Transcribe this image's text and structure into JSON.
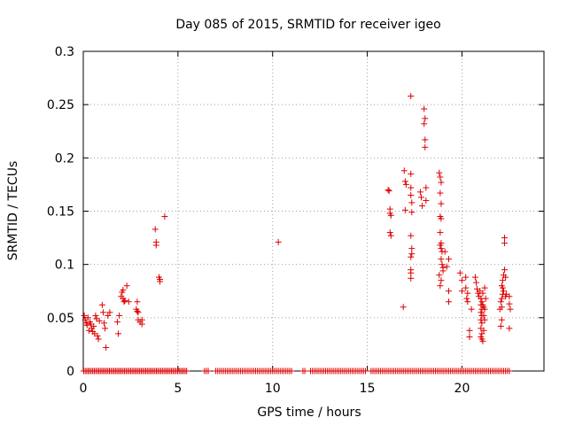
{
  "chart_data": {
    "type": "scatter",
    "title": "Day 085 of 2015, SRMTID for receiver igeo",
    "xlabel": "GPS time / hours",
    "ylabel": "SRMTID / TECUs",
    "xlim": [
      0,
      24.33
    ],
    "ylim": [
      0,
      0.3
    ],
    "x_ticks": [
      0,
      5,
      10,
      15,
      20
    ],
    "x_tick_labels": [
      "0",
      "5",
      "10",
      "15",
      "20"
    ],
    "y_ticks": [
      0,
      0.05,
      0.1,
      0.15,
      0.2,
      0.25,
      0.3
    ],
    "y_tick_labels": [
      "0",
      "0.05",
      "0.1",
      "0.15",
      "0.2",
      "0.25",
      "0.3"
    ],
    "grid": true,
    "marker": "+",
    "color": "#dd0000",
    "grid_color": "#a0a0a0",
    "series": [
      {
        "name": "SRMTID",
        "points": [
          [
            0.05,
            0.052
          ],
          [
            0.1,
            0.048
          ],
          [
            0.15,
            0.045
          ],
          [
            0.2,
            0.043
          ],
          [
            0.25,
            0.05
          ],
          [
            0.3,
            0.038
          ],
          [
            0.35,
            0.046
          ],
          [
            0.4,
            0.044
          ],
          [
            0.45,
            0.04
          ],
          [
            0.5,
            0.037
          ],
          [
            0.55,
            0.042
          ],
          [
            0.6,
            0.035
          ],
          [
            0.65,
            0.052
          ],
          [
            0.7,
            0.049
          ],
          [
            0.75,
            0.033
          ],
          [
            0.8,
            0.03
          ],
          [
            0.85,
            0.047
          ],
          [
            1.0,
            0.062
          ],
          [
            1.05,
            0.055
          ],
          [
            1.1,
            0.045
          ],
          [
            1.15,
            0.04
          ],
          [
            1.2,
            0.022
          ],
          [
            1.3,
            0.052
          ],
          [
            1.4,
            0.055
          ],
          [
            1.8,
            0.046
          ],
          [
            1.85,
            0.035
          ],
          [
            1.9,
            0.052
          ],
          [
            2.0,
            0.07
          ],
          [
            2.05,
            0.074
          ],
          [
            2.1,
            0.076
          ],
          [
            2.1,
            0.068
          ],
          [
            2.15,
            0.065
          ],
          [
            2.2,
            0.066
          ],
          [
            2.3,
            0.08
          ],
          [
            2.4,
            0.065
          ],
          [
            2.8,
            0.058
          ],
          [
            2.85,
            0.056
          ],
          [
            2.9,
            0.055
          ],
          [
            2.85,
            0.065
          ],
          [
            2.9,
            0.048
          ],
          [
            3.0,
            0.046
          ],
          [
            3.1,
            0.048
          ],
          [
            3.1,
            0.044
          ],
          [
            3.8,
            0.133
          ],
          [
            3.85,
            0.121
          ],
          [
            3.85,
            0.118
          ],
          [
            4.0,
            0.088
          ],
          [
            4.05,
            0.086
          ],
          [
            4.05,
            0.084
          ],
          [
            4.3,
            0.145
          ],
          [
            10.3,
            0.121
          ],
          [
            16.1,
            0.17
          ],
          [
            16.15,
            0.169
          ],
          [
            16.2,
            0.152
          ],
          [
            16.2,
            0.148
          ],
          [
            16.25,
            0.146
          ],
          [
            16.2,
            0.13
          ],
          [
            16.25,
            0.127
          ],
          [
            16.9,
            0.06
          ],
          [
            16.95,
            0.188
          ],
          [
            17.0,
            0.178
          ],
          [
            17.05,
            0.175
          ],
          [
            17.0,
            0.151
          ],
          [
            17.3,
            0.258
          ],
          [
            17.3,
            0.185
          ],
          [
            17.3,
            0.172
          ],
          [
            17.3,
            0.165
          ],
          [
            17.35,
            0.158
          ],
          [
            17.35,
            0.149
          ],
          [
            17.3,
            0.127
          ],
          [
            17.35,
            0.115
          ],
          [
            17.3,
            0.107
          ],
          [
            17.3,
            0.095
          ],
          [
            17.3,
            0.092
          ],
          [
            17.3,
            0.087
          ],
          [
            17.35,
            0.11
          ],
          [
            17.8,
            0.168
          ],
          [
            17.85,
            0.163
          ],
          [
            17.9,
            0.155
          ],
          [
            18.0,
            0.246
          ],
          [
            18.05,
            0.237
          ],
          [
            18.0,
            0.232
          ],
          [
            18.05,
            0.217
          ],
          [
            18.05,
            0.21
          ],
          [
            18.1,
            0.172
          ],
          [
            18.1,
            0.16
          ],
          [
            18.8,
            0.186
          ],
          [
            18.85,
            0.182
          ],
          [
            18.9,
            0.177
          ],
          [
            18.85,
            0.167
          ],
          [
            18.9,
            0.157
          ],
          [
            18.85,
            0.145
          ],
          [
            18.9,
            0.143
          ],
          [
            18.85,
            0.13
          ],
          [
            18.9,
            0.12
          ],
          [
            18.85,
            0.118
          ],
          [
            18.9,
            0.115
          ],
          [
            18.95,
            0.112
          ],
          [
            18.9,
            0.105
          ],
          [
            18.95,
            0.1
          ],
          [
            19.0,
            0.097
          ],
          [
            19.0,
            0.094
          ],
          [
            18.8,
            0.09
          ],
          [
            18.9,
            0.085
          ],
          [
            18.85,
            0.08
          ],
          [
            19.1,
            0.112
          ],
          [
            19.2,
            0.098
          ],
          [
            19.3,
            0.105
          ],
          [
            19.3,
            0.075
          ],
          [
            19.3,
            0.065
          ],
          [
            19.9,
            0.092
          ],
          [
            20.0,
            0.085
          ],
          [
            20.0,
            0.075
          ],
          [
            20.2,
            0.088
          ],
          [
            20.2,
            0.078
          ],
          [
            20.25,
            0.068
          ],
          [
            20.3,
            0.073
          ],
          [
            20.3,
            0.065
          ],
          [
            20.4,
            0.038
          ],
          [
            20.4,
            0.032
          ],
          [
            20.5,
            0.058
          ],
          [
            20.7,
            0.088
          ],
          [
            20.75,
            0.083
          ],
          [
            20.8,
            0.077
          ],
          [
            20.85,
            0.073
          ],
          [
            20.9,
            0.07
          ],
          [
            20.95,
            0.075
          ],
          [
            21.0,
            0.068
          ],
          [
            21.05,
            0.065
          ],
          [
            21.0,
            0.062
          ],
          [
            21.05,
            0.058
          ],
          [
            21.0,
            0.055
          ],
          [
            21.05,
            0.052
          ],
          [
            21.0,
            0.048
          ],
          [
            21.05,
            0.045
          ],
          [
            21.0,
            0.04
          ],
          [
            21.05,
            0.035
          ],
          [
            21.0,
            0.032
          ],
          [
            21.05,
            0.03
          ],
          [
            21.1,
            0.028
          ],
          [
            21.1,
            0.062
          ],
          [
            21.15,
            0.06
          ],
          [
            21.2,
            0.058
          ],
          [
            21.15,
            0.052
          ],
          [
            21.2,
            0.048
          ],
          [
            21.1,
            0.073
          ],
          [
            21.2,
            0.078
          ],
          [
            21.25,
            0.068
          ],
          [
            21.15,
            0.038
          ],
          [
            22.0,
            0.058
          ],
          [
            22.05,
            0.065
          ],
          [
            22.1,
            0.068
          ],
          [
            22.15,
            0.072
          ],
          [
            22.1,
            0.08
          ],
          [
            22.15,
            0.085
          ],
          [
            22.2,
            0.09
          ],
          [
            22.25,
            0.095
          ],
          [
            22.1,
            0.06
          ],
          [
            22.05,
            0.042
          ],
          [
            22.1,
            0.048
          ],
          [
            22.2,
            0.075
          ],
          [
            22.15,
            0.078
          ],
          [
            22.25,
            0.12
          ],
          [
            22.25,
            0.125
          ],
          [
            22.3,
            0.088
          ],
          [
            22.35,
            0.072
          ],
          [
            22.3,
            0.07
          ],
          [
            22.5,
            0.07
          ],
          [
            22.5,
            0.063
          ],
          [
            22.55,
            0.058
          ],
          [
            22.5,
            0.04
          ]
        ],
        "zero_points_x": [
          0.02,
          0.1,
          0.18,
          0.26,
          0.34,
          0.42,
          0.5,
          0.58,
          0.66,
          0.74,
          0.82,
          0.9,
          0.98,
          1.06,
          1.14,
          1.22,
          1.3,
          1.38,
          1.46,
          1.54,
          1.62,
          1.7,
          1.78,
          1.86,
          1.94,
          2.02,
          2.1,
          2.18,
          2.26,
          2.34,
          2.42,
          2.5,
          2.58,
          2.66,
          2.74,
          2.82,
          2.9,
          2.98,
          3.06,
          3.14,
          3.22,
          3.3,
          3.38,
          3.46,
          3.54,
          3.62,
          3.7,
          3.78,
          3.86,
          3.94,
          4.02,
          4.1,
          4.18,
          4.26,
          4.34,
          4.42,
          4.5,
          4.58,
          4.66,
          4.74,
          4.82,
          4.9,
          4.98,
          5.06,
          5.14,
          5.22,
          5.3,
          5.38,
          5.46,
          6.4,
          6.5,
          6.6,
          7.0,
          7.1,
          7.2,
          7.3,
          7.4,
          7.5,
          7.6,
          7.7,
          7.8,
          7.9,
          8.0,
          8.1,
          8.2,
          8.3,
          8.4,
          8.5,
          8.6,
          8.7,
          8.8,
          8.9,
          9.0,
          9.1,
          9.2,
          9.3,
          9.4,
          9.5,
          9.6,
          9.7,
          9.8,
          9.9,
          10.0,
          10.1,
          10.2,
          10.3,
          10.4,
          10.5,
          10.6,
          10.7,
          10.8,
          10.9,
          11.0,
          11.6,
          11.7,
          12.0,
          12.1,
          12.2,
          12.3,
          12.4,
          12.5,
          12.6,
          12.7,
          12.8,
          12.9,
          13.0,
          13.1,
          13.2,
          13.3,
          13.4,
          13.5,
          13.6,
          13.7,
          13.8,
          13.9,
          14.0,
          14.1,
          14.2,
          14.3,
          14.4,
          14.5,
          14.6,
          14.7,
          14.8,
          14.9,
          15.2,
          15.3,
          15.4,
          15.5,
          15.6,
          15.7,
          15.8,
          15.9,
          16.0,
          16.1,
          16.2,
          16.3,
          16.4,
          16.5,
          16.6,
          16.7,
          16.8,
          16.9,
          17.0,
          17.1,
          17.2,
          17.3,
          17.4,
          17.5,
          17.6,
          17.7,
          17.8,
          17.9,
          18.0,
          18.1,
          18.2,
          18.3,
          18.4,
          18.5,
          18.6,
          18.7,
          18.8,
          18.9,
          19.0,
          19.1,
          19.2,
          19.3,
          19.4,
          19.5,
          19.6,
          19.7,
          19.8,
          19.9,
          20.0,
          20.1,
          20.2,
          20.3,
          20.4,
          20.5,
          20.6,
          20.7,
          20.8,
          20.9,
          21.0,
          21.1,
          21.2,
          21.3,
          21.4,
          21.5,
          21.6,
          21.7,
          21.8,
          21.9,
          22.0,
          22.1,
          22.2,
          22.3,
          22.4,
          22.5
        ]
      }
    ]
  }
}
